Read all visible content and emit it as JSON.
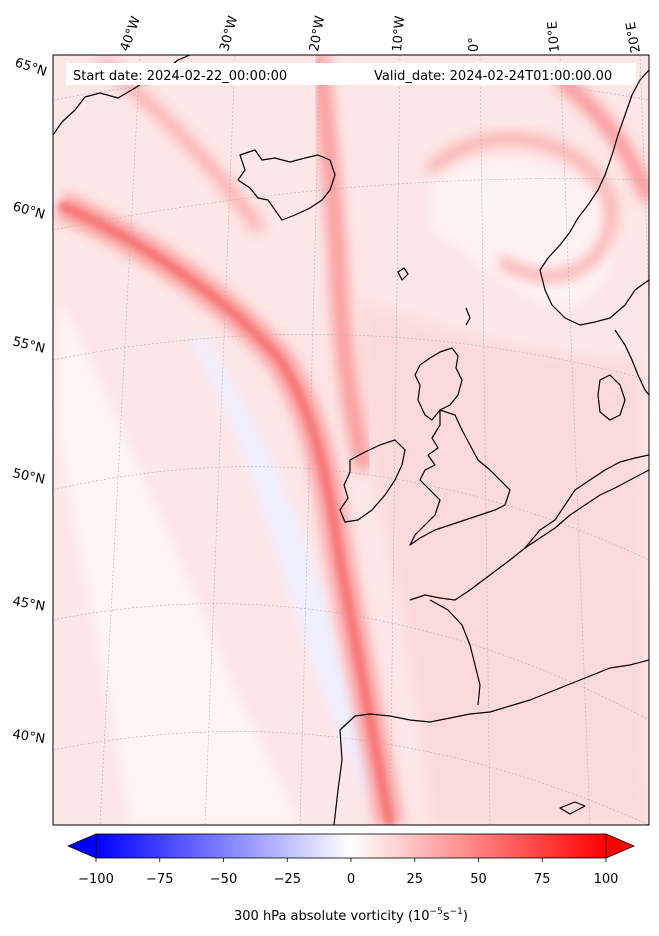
{
  "header": {
    "start_date": "Start date: 2024-02-22_00:00:00",
    "valid_date": "Valid_date: 2024-02-24T01:00:00.00"
  },
  "lon_labels": [
    "40°W",
    "30°W",
    "20°W",
    "10°W",
    "0°",
    "10°E",
    "20°E"
  ],
  "lat_labels": [
    "65°N",
    "60°N",
    "55°N",
    "50°N",
    "45°N",
    "40°N"
  ],
  "colorbar": {
    "ticks": [
      "−100",
      "−75",
      "−50",
      "−25",
      "0",
      "25",
      "50",
      "75",
      "100"
    ],
    "label": "300 hPa absolute vorticity (10",
    "label_exp1": "−5",
    "label_mid": "s",
    "label_exp2": "−1",
    "label_end": ")",
    "range": [
      -100,
      100
    ],
    "levels": 40,
    "colormap": "bwr",
    "extend": "both"
  },
  "colors": {
    "min": "#0000ff",
    "mid": "#ffffff",
    "max": "#ff0000",
    "coastline": "#000000",
    "grid": "#b0b0b0"
  }
}
